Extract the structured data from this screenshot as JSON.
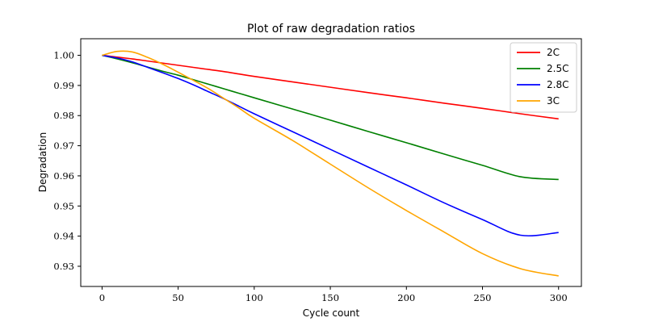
{
  "chart_data": {
    "type": "line",
    "title": "Plot of raw degradation ratios",
    "xlabel": "Cycle count",
    "ylabel": "Degradation",
    "xlim": [
      -14,
      315
    ],
    "ylim": [
      0.9233,
      1.0055
    ],
    "xticks": [
      0,
      50,
      100,
      150,
      200,
      250,
      300
    ],
    "xtick_labels": [
      "0",
      "50",
      "100",
      "150",
      "200",
      "250",
      "300"
    ],
    "yticks": [
      0.93,
      0.94,
      0.95,
      0.96,
      0.97,
      0.98,
      0.99,
      1.0
    ],
    "ytick_labels": [
      "0.93",
      "0.94",
      "0.95",
      "0.96",
      "0.97",
      "0.98",
      "0.99",
      "1.00"
    ],
    "grid": false,
    "legend_position": "top-right",
    "x": [
      0,
      10,
      20,
      30,
      40,
      50,
      60,
      70,
      80,
      90,
      100,
      125,
      150,
      175,
      200,
      225,
      250,
      275,
      300
    ],
    "series": [
      {
        "name": "2C",
        "color": "#ff0000",
        "values": [
          1.0,
          0.9994,
          0.9988,
          0.9981,
          0.9974,
          0.9967,
          0.996,
          0.9953,
          0.9946,
          0.9938,
          0.993,
          0.9912,
          0.9894,
          0.9876,
          0.9859,
          0.9841,
          0.9824,
          0.9806,
          0.9789
        ]
      },
      {
        "name": "2.5C",
        "color": "#008000",
        "values": [
          1.0,
          0.9988,
          0.9975,
          0.9961,
          0.9947,
          0.9934,
          0.9919,
          0.9904,
          0.9889,
          0.9874,
          0.9859,
          0.9822,
          0.9785,
          0.9747,
          0.971,
          0.9672,
          0.9635,
          0.9597,
          0.9588
        ]
      },
      {
        "name": "2.8C",
        "color": "#0000ff",
        "values": [
          1.0,
          0.9991,
          0.9978,
          0.996,
          0.9942,
          0.9923,
          0.9902,
          0.9879,
          0.9856,
          0.9831,
          0.9806,
          0.9747,
          0.9688,
          0.9629,
          0.957,
          0.951,
          0.9455,
          0.9403,
          0.9412
        ]
      },
      {
        "name": "3C",
        "color": "#ffa500",
        "values": [
          1.0,
          1.0013,
          1.0011,
          0.9993,
          0.997,
          0.9944,
          0.9917,
          0.9889,
          0.9857,
          0.9825,
          0.9791,
          0.9718,
          0.9639,
          0.956,
          0.9485,
          0.9413,
          0.9342,
          0.9292,
          0.9268
        ]
      }
    ]
  }
}
